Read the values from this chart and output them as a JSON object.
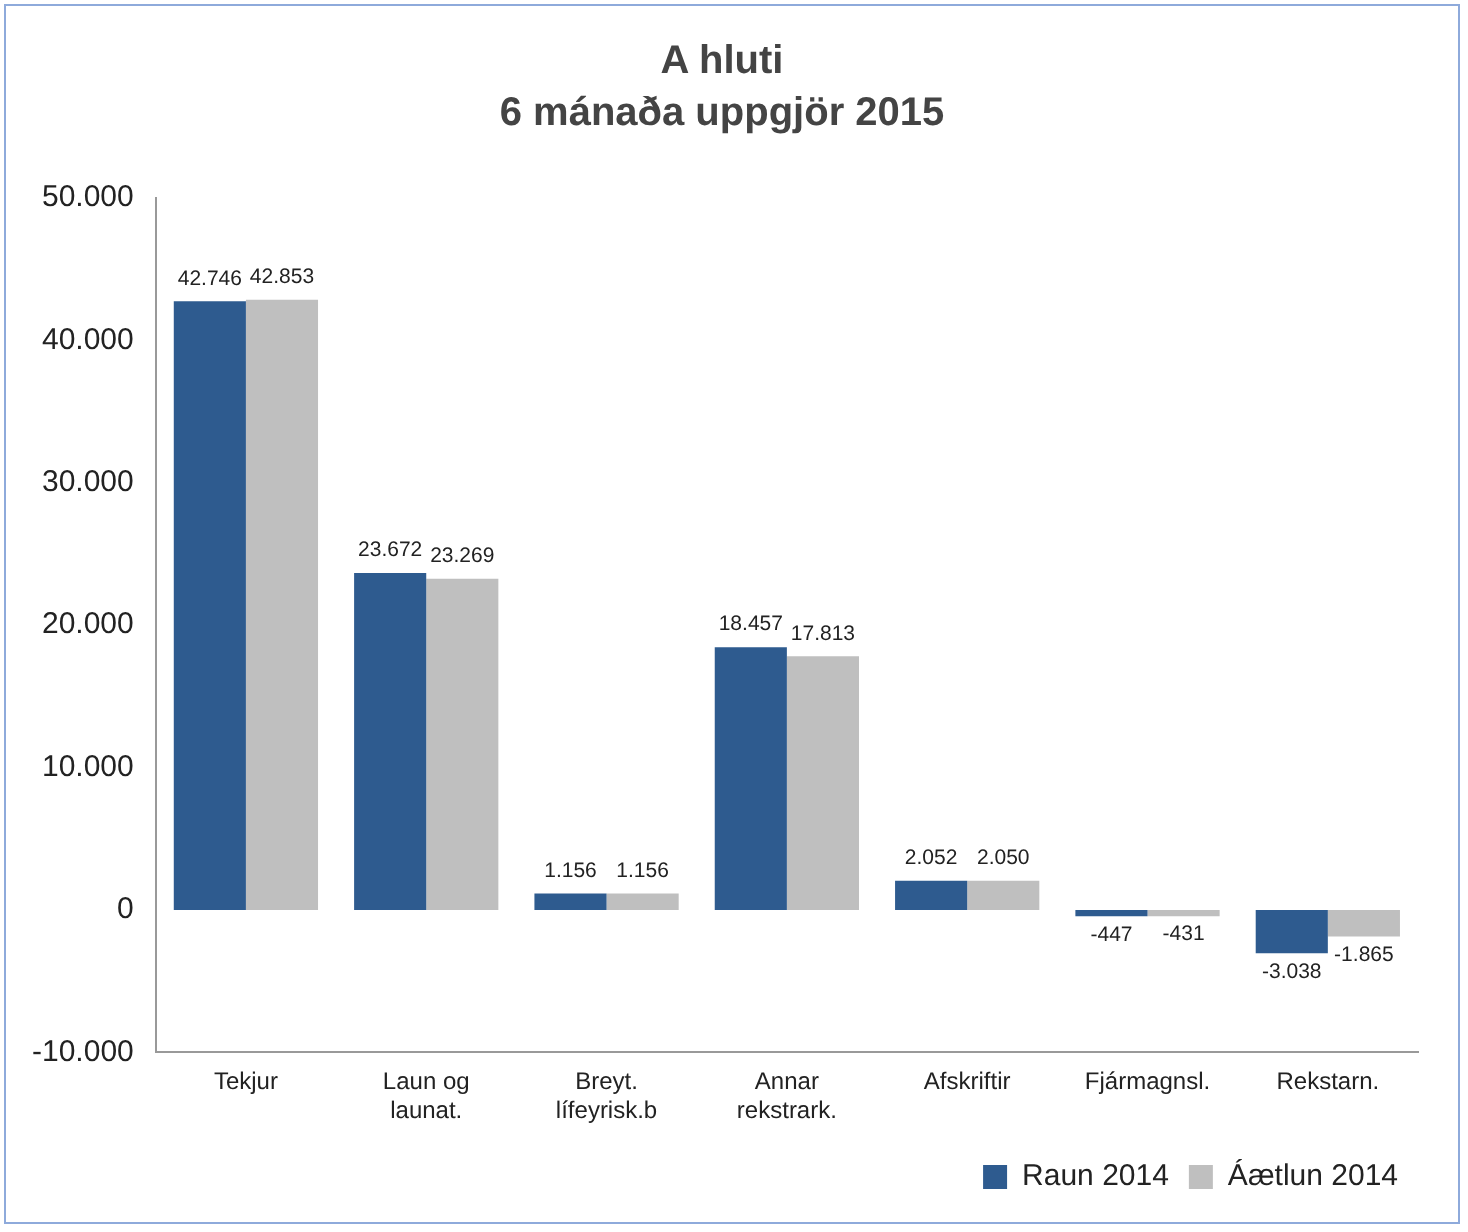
{
  "chart_data": {
    "type": "bar",
    "title": "A hluti",
    "subtitle": "6 mánaða uppgjör 2015",
    "categories": [
      "Tekjur",
      "Laun og launat.",
      "Breyt. lífeyrisk.b",
      "Annar rekstrark.",
      "Afskriftir",
      "Fjármagnsl.",
      "Rekstarn."
    ],
    "series": [
      {
        "name": "Raun 2014",
        "color": "#2e5b8f",
        "values": [
          42746,
          23672,
          1156,
          18457,
          2052,
          -447,
          -3038
        ],
        "value_labels": [
          "42.746",
          "23.672",
          "1.156",
          "18.457",
          "2.052",
          "-447",
          "-3.038"
        ]
      },
      {
        "name": "Áætlun 2014",
        "color": "#bfbfbf",
        "values": [
          42853,
          23269,
          1156,
          17813,
          2050,
          -431,
          -1865
        ],
        "value_labels": [
          "42.853",
          "23.269",
          "1.156",
          "17.813",
          "2.050",
          "-431",
          "-1.865"
        ]
      }
    ],
    "ylim": [
      -10000,
      50000
    ],
    "yticks": [
      {
        "value": -10000,
        "label": "-10.000"
      },
      {
        "value": 0,
        "label": "0"
      },
      {
        "value": 10000,
        "label": "10.000"
      },
      {
        "value": 20000,
        "label": "20.000"
      },
      {
        "value": 30000,
        "label": "30.000"
      },
      {
        "value": 40000,
        "label": "40.000"
      },
      {
        "value": 50000,
        "label": "50.000"
      }
    ],
    "grid": false,
    "legend": "bottom right"
  }
}
